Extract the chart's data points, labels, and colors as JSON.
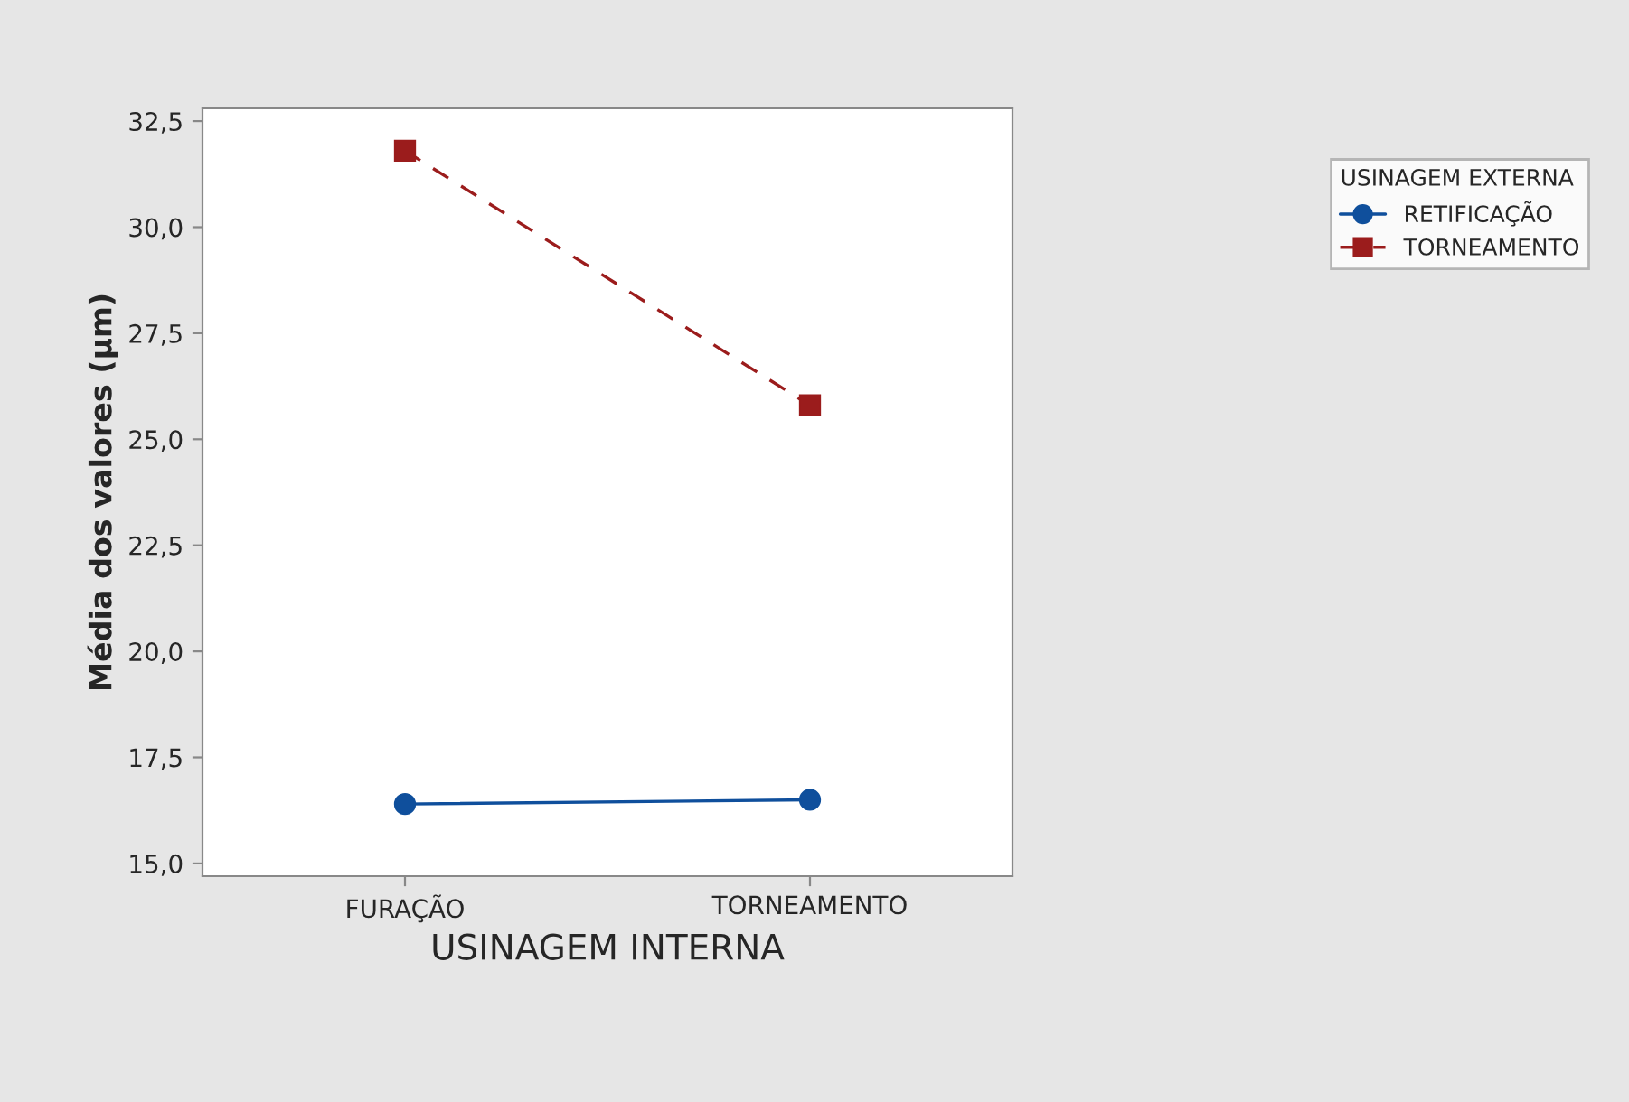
{
  "chart_data": {
    "type": "line",
    "xlabel": "USINAGEM INTERNA",
    "ylabel": "Média dos valores (µm)",
    "legend_title": "USINAGEM EXTERNA",
    "categories": [
      "FURAÇÃO",
      "TORNEAMENTO"
    ],
    "series": [
      {
        "name": "RETIFICAÇÃO",
        "color": "#0f4f9c",
        "values": [
          16.4,
          16.5
        ],
        "marker": "circle",
        "line_style": "solid"
      },
      {
        "name": "TORNEAMENTO",
        "color": "#9b1c1c",
        "values": [
          31.8,
          25.8
        ],
        "marker": "square",
        "line_style": "dashed"
      }
    ],
    "ylim": [
      14.7,
      32.8
    ],
    "yticks": [
      {
        "value": 15.0,
        "label": "15,0"
      },
      {
        "value": 17.5,
        "label": "17,5"
      },
      {
        "value": 20.0,
        "label": "20,0"
      },
      {
        "value": 22.5,
        "label": "22,5"
      },
      {
        "value": 25.0,
        "label": "25,0"
      },
      {
        "value": 27.5,
        "label": "27,5"
      },
      {
        "value": 30.0,
        "label": "30,0"
      },
      {
        "value": 32.5,
        "label": "32,5"
      }
    ],
    "grid": false,
    "legend": "top right"
  }
}
